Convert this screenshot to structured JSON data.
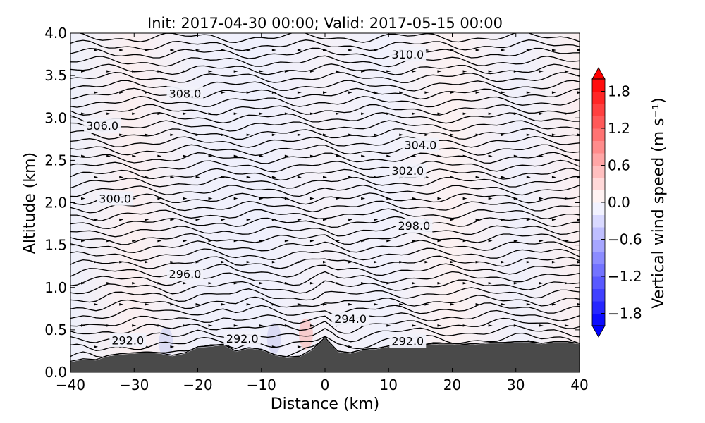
{
  "chart_data": {
    "type": "heatmap",
    "title": "Init: 2017-04-30 00:00; Valid: 2017-05-15 00:00",
    "xlabel": "Distance (km)",
    "ylabel": "Altitude (km)",
    "xlim": [
      -40,
      40
    ],
    "ylim": [
      0.0,
      4.0
    ],
    "x_ticks": [
      -40,
      -30,
      -20,
      -10,
      0,
      10,
      20,
      30,
      40
    ],
    "x_tick_labels": [
      "−40",
      "−30",
      "−20",
      "−10",
      "0",
      "10",
      "20",
      "30",
      "40"
    ],
    "y_ticks": [
      0.0,
      0.5,
      1.0,
      1.5,
      2.0,
      2.5,
      3.0,
      3.5,
      4.0
    ],
    "y_tick_labels": [
      "0.0",
      "0.5",
      "1.0",
      "1.5",
      "2.0",
      "2.5",
      "3.0",
      "3.5",
      "4.0"
    ],
    "grid": false,
    "colorbar": {
      "label": "Vertical wind speed (m s⁻¹)",
      "range": [
        -2.0,
        2.0
      ],
      "ticks": [
        1.8,
        1.2,
        0.6,
        0.0,
        -0.6,
        -1.2,
        -1.8
      ],
      "tick_labels": [
        "1.8",
        "1.2",
        "0.6",
        "0.0",
        "−0.6",
        "−1.2",
        "−1.8"
      ],
      "colormap": "bwr",
      "levels": 20,
      "extend": "both"
    },
    "terrain": {
      "color": "#4a4a4a",
      "x": [
        -40,
        -38,
        -36,
        -34,
        -32,
        -30,
        -28,
        -26,
        -24,
        -22,
        -20,
        -18,
        -16,
        -14,
        -12,
        -10,
        -8,
        -6,
        -4,
        -2,
        0,
        2,
        4,
        6,
        8,
        10,
        12,
        14,
        16,
        18,
        20,
        22,
        24,
        26,
        28,
        30,
        32,
        34,
        36,
        38,
        40
      ],
      "altitude_km": [
        0.12,
        0.15,
        0.14,
        0.19,
        0.21,
        0.22,
        0.23,
        0.22,
        0.19,
        0.22,
        0.29,
        0.3,
        0.32,
        0.24,
        0.28,
        0.26,
        0.2,
        0.17,
        0.18,
        0.26,
        0.4,
        0.24,
        0.22,
        0.26,
        0.27,
        0.3,
        0.31,
        0.31,
        0.32,
        0.33,
        0.33,
        0.32,
        0.33,
        0.34,
        0.34,
        0.35,
        0.35,
        0.33,
        0.35,
        0.35,
        0.33
      ]
    },
    "isentropes": {
      "units": "K",
      "levels": [
        291.0,
        291.5,
        292.0,
        292.5,
        293.0,
        293.5,
        294.0,
        294.5,
        295.0,
        295.5,
        296.0,
        296.5,
        297.0,
        297.5,
        298.0,
        298.5,
        299.0,
        299.5,
        300.0,
        300.5,
        301.0,
        301.5,
        302.0,
        302.5,
        303.0,
        303.5,
        304.0,
        304.5,
        305.0,
        305.5,
        306.0,
        306.5,
        307.0,
        307.5,
        308.0,
        308.5,
        309.0,
        309.5,
        310.0,
        310.5,
        311.0
      ],
      "labels": [
        {
          "text": "292.0",
          "x": -31,
          "y": 0.38
        },
        {
          "text": "292.0",
          "x": -13,
          "y": 0.4
        },
        {
          "text": "292.0",
          "x": 13,
          "y": 0.37
        },
        {
          "text": "294.0",
          "x": 4,
          "y": 0.63
        },
        {
          "text": "296.0",
          "x": -22,
          "y": 1.16
        },
        {
          "text": "298.0",
          "x": 14,
          "y": 1.73
        },
        {
          "text": "300.0",
          "x": -33,
          "y": 2.05
        },
        {
          "text": "302.0",
          "x": 13,
          "y": 2.38
        },
        {
          "text": "304.0",
          "x": 15,
          "y": 2.68
        },
        {
          "text": "306.0",
          "x": -35,
          "y": 2.91
        },
        {
          "text": "308.0",
          "x": -22,
          "y": 3.29
        },
        {
          "text": "310.0",
          "x": 13,
          "y": 3.75
        }
      ]
    },
    "vertical_velocity_highlights": [
      {
        "x": -3,
        "y": 0.45,
        "w_ms": 0.5
      },
      {
        "x": -25,
        "y": 0.35,
        "w_ms": -0.3
      },
      {
        "x": -8,
        "y": 0.4,
        "w_ms": -0.3
      }
    ]
  }
}
